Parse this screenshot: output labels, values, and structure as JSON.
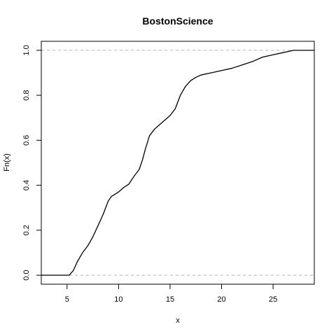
{
  "chart_data": {
    "type": "line",
    "title": "BostonScience",
    "xlabel": "x",
    "ylabel": "Fn(x)",
    "xlim": [
      2.5,
      29
    ],
    "ylim": [
      -0.04,
      1.04
    ],
    "x_ticks": [
      5,
      10,
      15,
      20,
      25
    ],
    "y_ticks": [
      0.0,
      0.2,
      0.4,
      0.6,
      0.8,
      1.0
    ],
    "x_tick_labels": [
      "5",
      "10",
      "15",
      "20",
      "25"
    ],
    "y_tick_labels": [
      "0.0",
      "0.2",
      "0.4",
      "0.6",
      "0.8",
      "1.0"
    ],
    "reference_lines_y": [
      0,
      1
    ],
    "grid": false,
    "series": [
      {
        "x": [
          2.5,
          5.2,
          5.6,
          6.0,
          6.5,
          7.0,
          7.5,
          8.0,
          8.5,
          9.0,
          9.3,
          10.0,
          10.5,
          11.0,
          11.5,
          12.0,
          12.3,
          12.6,
          13.0,
          13.5,
          14.0,
          14.5,
          15.0,
          15.5,
          16.0,
          16.5,
          17.0,
          17.5,
          18.0,
          19.0,
          20.0,
          21.0,
          22.0,
          23.0,
          24.0,
          25.0,
          26.0,
          27.0,
          29.0
        ],
        "y": [
          0.0,
          0.0,
          0.02,
          0.06,
          0.1,
          0.13,
          0.17,
          0.22,
          0.27,
          0.33,
          0.35,
          0.37,
          0.39,
          0.405,
          0.44,
          0.47,
          0.51,
          0.56,
          0.62,
          0.65,
          0.67,
          0.69,
          0.71,
          0.74,
          0.8,
          0.84,
          0.865,
          0.88,
          0.89,
          0.9,
          0.91,
          0.92,
          0.935,
          0.95,
          0.97,
          0.98,
          0.99,
          1.0,
          1.0
        ]
      }
    ]
  }
}
